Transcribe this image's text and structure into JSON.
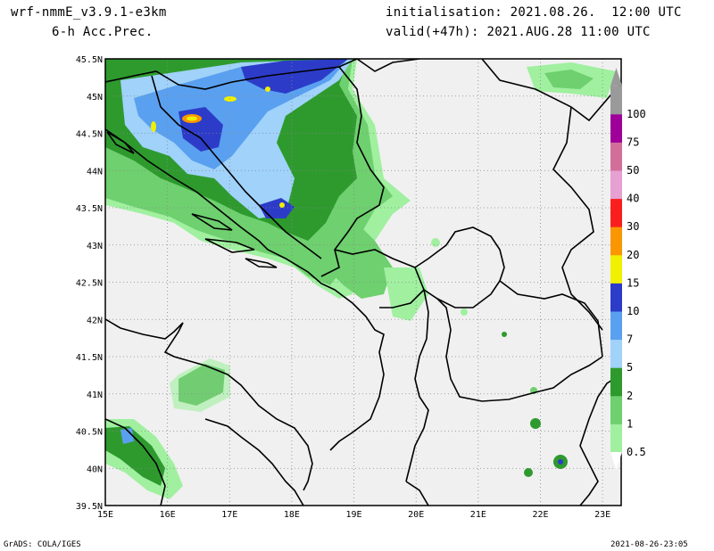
{
  "header": {
    "model": "wrf-nmmE_v3.9.1-e3km",
    "product": "6-h Acc.Prec.",
    "init_line": "initialisation: 2021.08.26.  12:00 UTC",
    "valid_line": "valid(+47h): 2021.AUG.28 11:00 UTC"
  },
  "footer": {
    "left": "GrADS: COLA/IGES",
    "right": "2021-08-26-23:05"
  },
  "map": {
    "lon_range": [
      15,
      23.3
    ],
    "lat_range": [
      39.5,
      45.5
    ],
    "lon_labels": [
      "15E",
      "16E",
      "17E",
      "18E",
      "19E",
      "20E",
      "21E",
      "22E",
      "23E"
    ],
    "lat_labels": [
      "45.5N",
      "45N",
      "44.5N",
      "44N",
      "43.5N",
      "43N",
      "42.5N",
      "42N",
      "41.5N",
      "41N",
      "40.5N",
      "40N",
      "39.5N"
    ],
    "land_color": "#f0f0f0",
    "grid": "dotted"
  },
  "colorbar": {
    "levels": [
      "0.5",
      "1",
      "2",
      "5",
      "7",
      "10",
      "15",
      "20",
      "30",
      "40",
      "50",
      "75",
      "100"
    ],
    "colors": [
      "#a0f0a0",
      "#6ed06e",
      "#2e9a2e",
      "#a0d2fa",
      "#5aa0f0",
      "#2c3cc8",
      "#f0f000",
      "#fa9600",
      "#fa1e1e",
      "#e6a0d2",
      "#d26e9a",
      "#a0009a",
      "#9a9a9a"
    ]
  }
}
